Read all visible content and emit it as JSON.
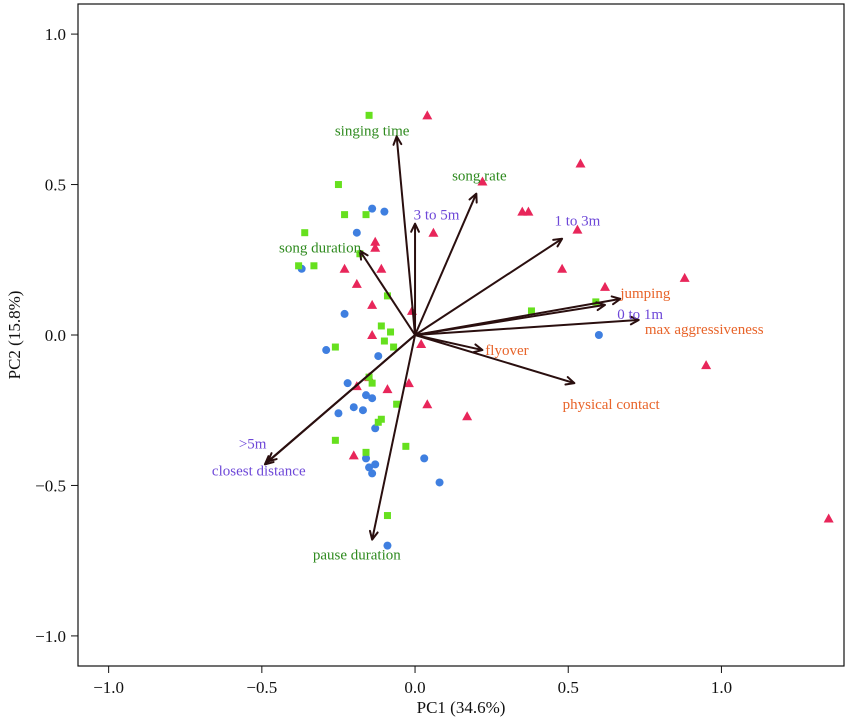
{
  "chart_data": {
    "type": "scatter",
    "title": "",
    "xlabel": "PC1 (34.6%)",
    "ylabel": "PC2 (15.8%)",
    "xlim": [
      -1.1,
      1.4
    ],
    "ylim": [
      -1.1,
      1.1
    ],
    "xticks": [
      -1.0,
      -0.5,
      0.0,
      0.5,
      1.0
    ],
    "xtick_labels": [
      "−1.0",
      "−0.5",
      "0.0",
      "0.5",
      "1.0"
    ],
    "yticks": [
      -1.0,
      -0.5,
      0.0,
      0.5,
      1.0
    ],
    "ytick_labels": [
      "−1.0",
      "−0.5",
      "0.0",
      "0.5",
      "1.0"
    ],
    "grid": false,
    "colors": {
      "triangle": "#e8265a",
      "circle": "#3f7fe0",
      "square": "#66e01e",
      "arrow": "#2a0f0f",
      "label_green": "#2e8a1e",
      "label_purple": "#6e48d8",
      "label_orange": "#e8642a"
    },
    "series": [
      {
        "marker": "triangle",
        "color": "#e8265a",
        "points": [
          [
            0.04,
            0.73
          ],
          [
            0.54,
            0.57
          ],
          [
            0.22,
            0.51
          ],
          [
            0.35,
            0.41
          ],
          [
            0.37,
            0.41
          ],
          [
            0.53,
            0.35
          ],
          [
            0.06,
            0.34
          ],
          [
            -0.13,
            0.31
          ],
          [
            -0.13,
            0.29
          ],
          [
            -0.23,
            0.22
          ],
          [
            -0.11,
            0.22
          ],
          [
            0.48,
            0.22
          ],
          [
            0.88,
            0.19
          ],
          [
            0.62,
            0.16
          ],
          [
            -0.19,
            0.17
          ],
          [
            -0.14,
            0.1
          ],
          [
            -0.01,
            0.08
          ],
          [
            -0.14,
            0.0
          ],
          [
            0.02,
            -0.03
          ],
          [
            -0.15,
            -0.14
          ],
          [
            -0.19,
            -0.17
          ],
          [
            -0.09,
            -0.18
          ],
          [
            -0.02,
            -0.16
          ],
          [
            0.04,
            -0.23
          ],
          [
            0.17,
            -0.27
          ],
          [
            0.95,
            -0.1
          ],
          [
            -0.2,
            -0.4
          ],
          [
            1.35,
            -0.61
          ]
        ]
      },
      {
        "marker": "circle",
        "color": "#3f7fe0",
        "points": [
          [
            -0.14,
            0.42
          ],
          [
            -0.1,
            0.41
          ],
          [
            -0.19,
            0.34
          ],
          [
            -0.37,
            0.22
          ],
          [
            -0.23,
            0.07
          ],
          [
            -0.29,
            -0.05
          ],
          [
            -0.12,
            -0.07
          ],
          [
            -0.22,
            -0.16
          ],
          [
            -0.16,
            -0.2
          ],
          [
            -0.14,
            -0.21
          ],
          [
            -0.2,
            -0.24
          ],
          [
            -0.17,
            -0.25
          ],
          [
            -0.25,
            -0.26
          ],
          [
            -0.13,
            -0.31
          ],
          [
            -0.16,
            -0.41
          ],
          [
            -0.15,
            -0.44
          ],
          [
            -0.13,
            -0.43
          ],
          [
            -0.14,
            -0.46
          ],
          [
            0.03,
            -0.41
          ],
          [
            0.08,
            -0.49
          ],
          [
            -0.09,
            -0.7
          ],
          [
            0.6,
            0.0
          ]
        ]
      },
      {
        "marker": "square",
        "color": "#66e01e",
        "points": [
          [
            -0.15,
            0.73
          ],
          [
            -0.25,
            0.5
          ],
          [
            -0.23,
            0.4
          ],
          [
            -0.16,
            0.4
          ],
          [
            -0.36,
            0.34
          ],
          [
            -0.38,
            0.23
          ],
          [
            -0.33,
            0.23
          ],
          [
            -0.18,
            0.27
          ],
          [
            -0.09,
            0.13
          ],
          [
            -0.11,
            0.03
          ],
          [
            -0.08,
            0.01
          ],
          [
            -0.1,
            -0.02
          ],
          [
            -0.07,
            -0.04
          ],
          [
            -0.26,
            -0.04
          ],
          [
            -0.15,
            -0.14
          ],
          [
            -0.14,
            -0.16
          ],
          [
            -0.06,
            -0.23
          ],
          [
            -0.11,
            -0.28
          ],
          [
            -0.12,
            -0.29
          ],
          [
            -0.26,
            -0.35
          ],
          [
            -0.03,
            -0.37
          ],
          [
            -0.16,
            -0.39
          ],
          [
            -0.09,
            -0.6
          ],
          [
            0.38,
            0.08
          ],
          [
            0.59,
            0.11
          ]
        ]
      }
    ],
    "vectors": [
      {
        "label": "singing time",
        "x": -0.06,
        "y": 0.66,
        "color": "label_green",
        "lx": -0.14,
        "ly": 0.68,
        "anchor": "middle"
      },
      {
        "label": "song rate",
        "x": 0.2,
        "y": 0.47,
        "color": "label_green",
        "lx": 0.21,
        "ly": 0.53,
        "anchor": "middle"
      },
      {
        "label": "3 to 5m",
        "x": -0.0,
        "y": 0.37,
        "color": "label_purple",
        "lx": 0.07,
        "ly": 0.4,
        "anchor": "middle"
      },
      {
        "label": "song duration",
        "x": -0.18,
        "y": 0.28,
        "color": "label_green",
        "lx": -0.31,
        "ly": 0.29,
        "anchor": "middle"
      },
      {
        "label": "1 to 3m",
        "x": 0.48,
        "y": 0.32,
        "color": "label_purple",
        "lx": 0.53,
        "ly": 0.38,
        "anchor": "middle"
      },
      {
        "label": "jumping",
        "x": 0.67,
        "y": 0.12,
        "color": "label_orange",
        "lx": 0.67,
        "ly": 0.14,
        "anchor": "start"
      },
      {
        "label": "0 to 1m",
        "x": 0.62,
        "y": 0.1,
        "color": "label_purple",
        "lx": 0.66,
        "ly": 0.07,
        "anchor": "start"
      },
      {
        "label": "max aggressiveness",
        "x": 0.73,
        "y": 0.05,
        "color": "label_orange",
        "lx": 0.75,
        "ly": 0.02,
        "anchor": "start"
      },
      {
        "label": "flyover",
        "x": 0.22,
        "y": -0.05,
        "color": "label_orange",
        "lx": 0.3,
        "ly": -0.05,
        "anchor": "middle"
      },
      {
        "label": "physical contact",
        "x": 0.52,
        "y": -0.16,
        "color": "label_orange",
        "lx": 0.64,
        "ly": -0.23,
        "anchor": "middle"
      },
      {
        "label": ">5m",
        "x": -0.48,
        "y": -0.42,
        "color": "label_purple",
        "lx": -0.53,
        "ly": -0.36,
        "anchor": "middle"
      },
      {
        "label": "closest distance",
        "x": -0.49,
        "y": -0.43,
        "color": "label_purple",
        "lx": -0.51,
        "ly": -0.45,
        "anchor": "middle"
      },
      {
        "label": "pause duration",
        "x": -0.14,
        "y": -0.68,
        "color": "label_green",
        "lx": -0.19,
        "ly": -0.73,
        "anchor": "middle"
      }
    ]
  }
}
